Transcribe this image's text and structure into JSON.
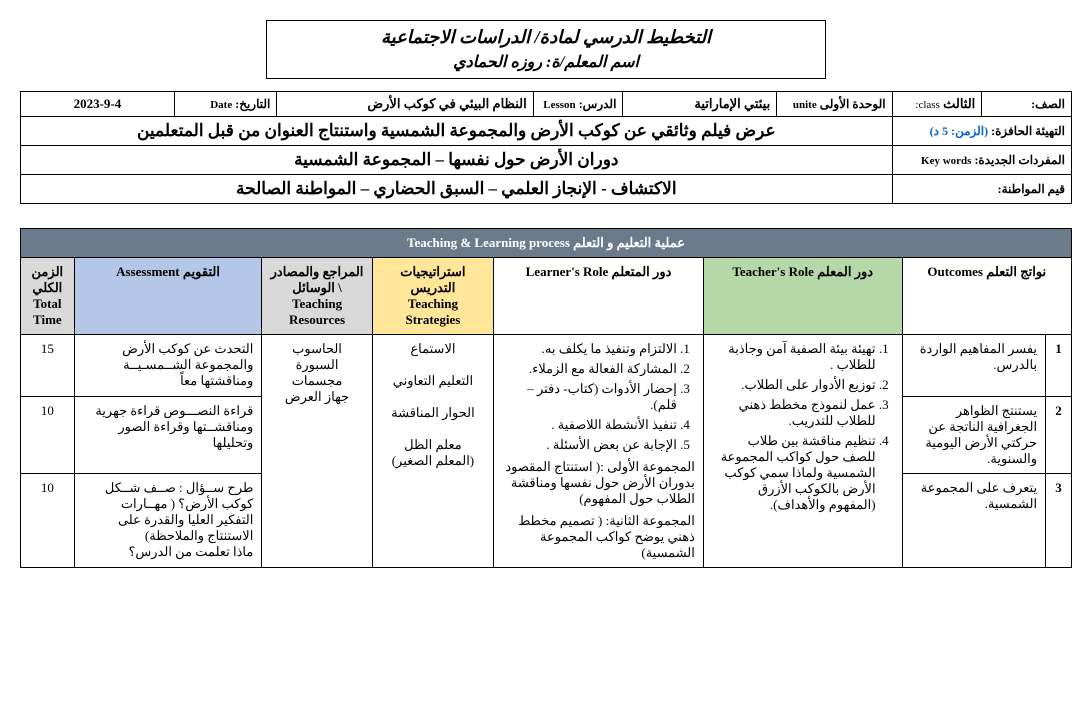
{
  "header": {
    "main_title": "التخطيط الدرسي لمادة/ الدراسات الاجتماعية",
    "teacher_line_prefix": "اسم المعلم/ة:",
    "teacher_name": "روزه الحمادي"
  },
  "info": {
    "class_label": "الصف:",
    "class_value": "الثالث",
    "class_en": "class:",
    "unit_label": "الوحدة الأولى",
    "unit_en": "unite",
    "unit_value": "بيئتي الإماراتية",
    "lesson_label": "الدرس:",
    "lesson_en": "Lesson",
    "lesson_value": "النظام البيئي في كوكب الأرض",
    "date_label": "التاريخ:",
    "date_en": "Date",
    "date_value": "2023-9-4",
    "warmup_label": "التهيئة الحافزة:",
    "warmup_time": "(الزمن: 5 د)",
    "warmup_text": "عرض فيلم وثائقي عن كوكب الأرض والمجموعة الشمسية واستنتاج العنوان من قبل المتعلمين",
    "keywords_label": "المفردات الجديدة:",
    "keywords_en": "Key words",
    "keywords_text": "دوران الأرض حول نفسها – المجموعة الشمسية",
    "values_label": "قيم المواطنة:",
    "values_text": "الاكتشاف - الإنجاز العلمي – السبق الحضاري – المواطنة الصالحة"
  },
  "process": {
    "banner": "عملية التعليم و التعلم Teaching & Learning process",
    "cols": {
      "outcomes": "نواتج التعلم Outcomes",
      "teacher": "دور المعلم Teacher's Role",
      "learner": "دور المتعلم Learner's Role",
      "strategies": "استراتيجيات التدريس\nTeaching Strategies",
      "resources": "المراجع والمصادر \\ الوسائل Teaching Resources",
      "assessment": "التقويم Assessment",
      "time": "الزمن الكلي\nTotal Time"
    },
    "outcomes": [
      {
        "n": "1",
        "text": "يفسر المفاهيم الواردة بالدرس."
      },
      {
        "n": "2",
        "text": "يستنتج الظواهر الجغرافية الناتجة عن حركتي الأرض اليومية والسنوية."
      },
      {
        "n": "3",
        "text": "يتعرف على المجموعة الشمسية."
      }
    ],
    "teacher_role": [
      "تهيئة بيئة الصفية آمن وجاذبة للطلاب .",
      "توزيع الأدوار على الطلاب.",
      "عمل لنموذج مخطط ذهني للطلاب للتدريب.",
      "تنظيم مناقشة بين طلاب للصف حول كواكب المجموعة الشمسية ولماذا سمي كوكب الأرض بالكوكب الأزرق (المفهوم والأهداف)."
    ],
    "learner_role": [
      "الالتزام وتنفيذ ما يكلف به.",
      "المشاركة الفعالة مع الزملاء.",
      "إحضار الأدوات (كتاب- دفتر – قلم).",
      "تنفيذ الأنشطة اللاصفية .",
      "الإجابة عن بعض الأسئلة ."
    ],
    "learner_sub1": "المجموعة الأولى :( استنتاج المقصود بدوران الأرض حول نفسها ومناقشة الطلاب حول المفهوم)",
    "learner_sub2": "المجموعة الثانية: ( تصميم مخطط ذهني يوضح كواكب المجموعة الشمسية)",
    "strategies": "الاستماع\n\nالتعليم التعاوني\n\nالحوار المناقشة\n\nمعلم الظل\n(المعلم الصغير)",
    "resources": "الحاسوب\nالسبورة\nمجسمات\nجهاز العرض",
    "assessments": [
      {
        "text": "التحدث عن كوكب الأرض والمجموعة الشــمسـيــة ومناقشتها معاً",
        "time": "15"
      },
      {
        "text": "قراءة النصـــوص قراءة جهرية ومناقشــتها وقراءة الصور وتحليلها",
        "time": "10"
      },
      {
        "text": "طرح ســؤال : صــف شــكل كوكب الأرض؟ ( مهــارات التفكير العليا والقدرة على الاستنتاج والملاحظة)\nماذا تعلمت من الدرس؟",
        "time": "10"
      }
    ]
  }
}
